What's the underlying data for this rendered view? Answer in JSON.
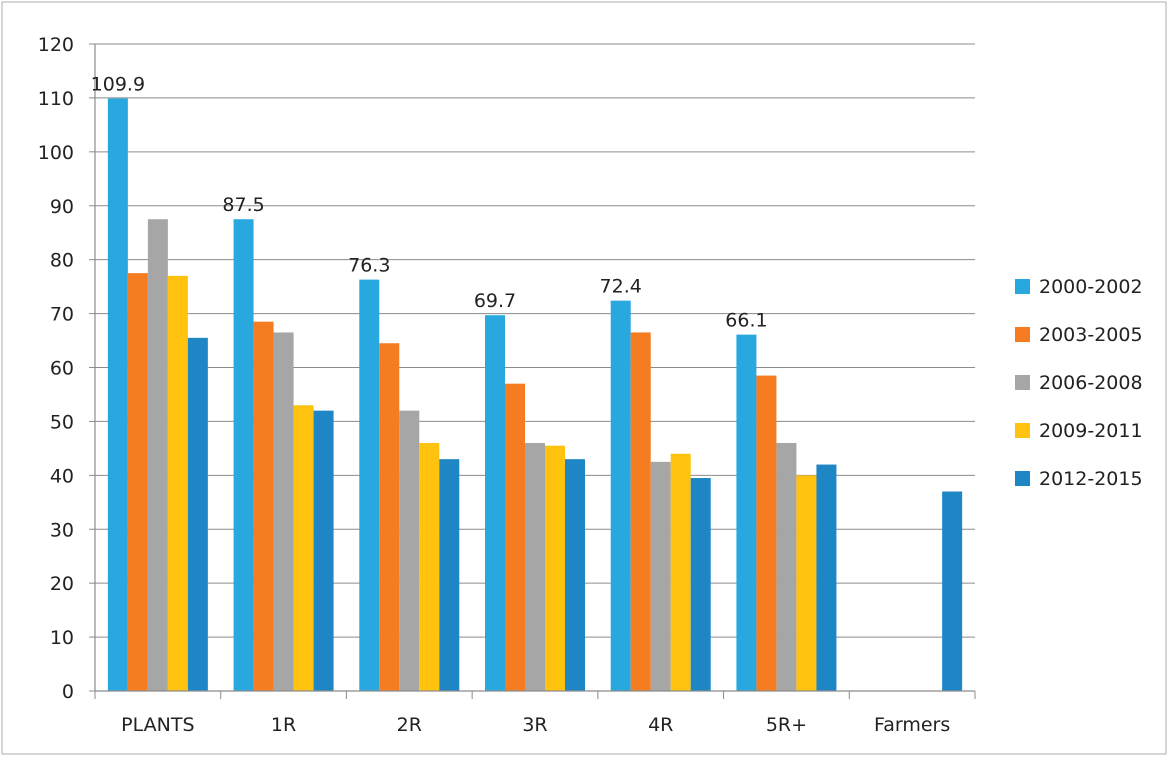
{
  "chart_data": {
    "type": "bar",
    "title": "",
    "xlabel": "",
    "ylabel": "",
    "ylim": [
      0,
      120
    ],
    "yticks": [
      "0",
      "10",
      "20",
      "30",
      "40",
      "50",
      "60",
      "70",
      "80",
      "90",
      "100",
      "110",
      "120"
    ],
    "grid": true,
    "legend_position": "right",
    "categories": [
      "PLANTS",
      "1R",
      "2R",
      "3R",
      "4R",
      "5R+",
      "Farmers"
    ],
    "series": [
      {
        "name": "2000-2002",
        "color": "#29A8DF",
        "values": [
          109.9,
          87.5,
          76.3,
          69.7,
          72.4,
          66.1,
          null
        ]
      },
      {
        "name": "2003-2005",
        "color": "#F57C20",
        "values": [
          77.5,
          68.5,
          64.5,
          57,
          66.5,
          58.5,
          null
        ]
      },
      {
        "name": "2006-2008",
        "color": "#A6A6A6",
        "values": [
          87.5,
          66.5,
          52,
          46,
          42.5,
          46,
          null
        ]
      },
      {
        "name": "2009-2011",
        "color": "#FFC20E",
        "values": [
          77,
          53,
          46,
          45.5,
          44,
          40,
          null
        ]
      },
      {
        "name": "2012-2015",
        "color": "#1F86C6",
        "values": [
          65.5,
          52,
          43,
          43,
          39.5,
          42,
          37
        ]
      }
    ],
    "annotations": [
      {
        "category": "PLANTS",
        "series": "2000-2002",
        "text": "109.9"
      },
      {
        "category": "1R",
        "series": "2000-2002",
        "text": "87.5"
      },
      {
        "category": "2R",
        "series": "2000-2002",
        "text": "76.3"
      },
      {
        "category": "3R",
        "series": "2000-2002",
        "text": "69.7"
      },
      {
        "category": "4R",
        "series": "2000-2002",
        "text": "72.4"
      },
      {
        "category": "5R+",
        "series": "2000-2002",
        "text": "66.1"
      }
    ]
  }
}
